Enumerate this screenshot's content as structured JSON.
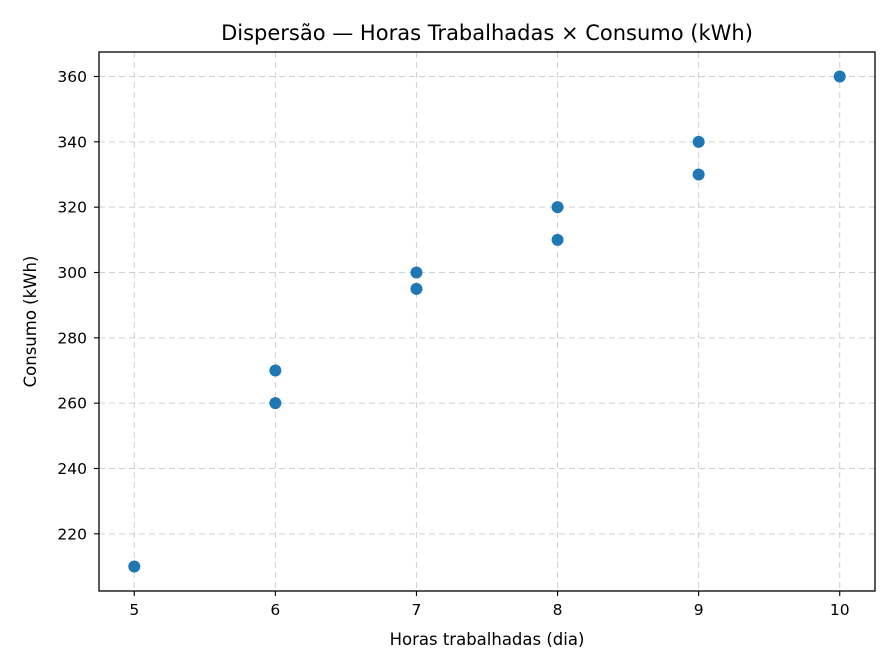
{
  "chart_data": {
    "type": "scatter",
    "title": "Dispersão — Horas Trabalhadas × Consumo (kWh)",
    "xlabel": "Horas trabalhadas (dia)",
    "ylabel": "Consumo (kWh)",
    "xlim": [
      4.75,
      10.25
    ],
    "ylim": [
      202.5,
      367.5
    ],
    "xticks": [
      5,
      6,
      7,
      8,
      9,
      10
    ],
    "yticks": [
      220,
      240,
      260,
      280,
      300,
      320,
      340,
      360
    ],
    "grid": true,
    "color": "#1f77b4",
    "points": [
      {
        "x": 5,
        "y": 210
      },
      {
        "x": 6,
        "y": 260
      },
      {
        "x": 6,
        "y": 270
      },
      {
        "x": 7,
        "y": 295
      },
      {
        "x": 7,
        "y": 300
      },
      {
        "x": 8,
        "y": 310
      },
      {
        "x": 8,
        "y": 320
      },
      {
        "x": 9,
        "y": 330
      },
      {
        "x": 9,
        "y": 340
      },
      {
        "x": 10,
        "y": 360
      }
    ]
  }
}
